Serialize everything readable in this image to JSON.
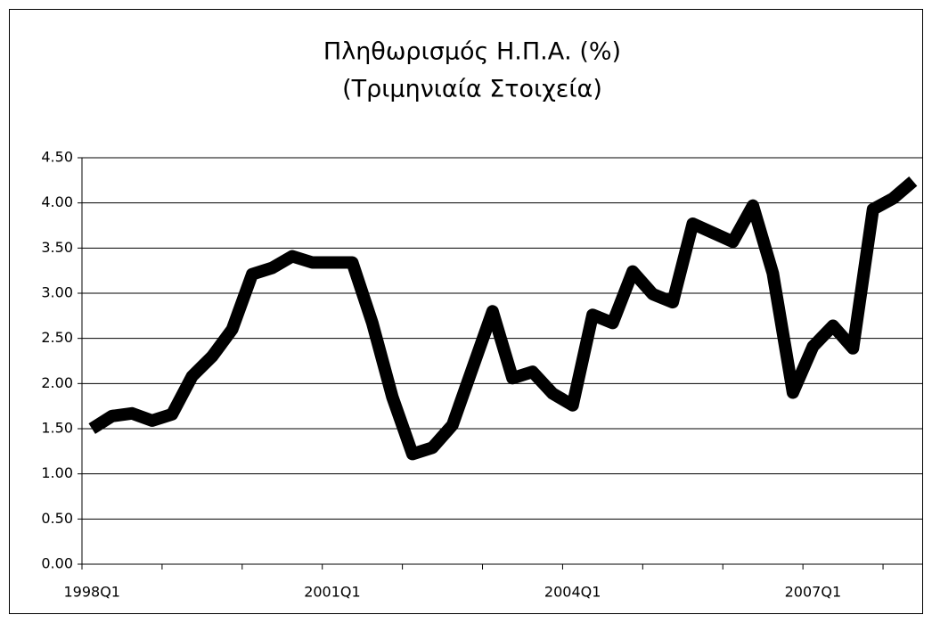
{
  "chart_data": {
    "type": "line",
    "title": [
      "Πληθωρισμός Η.Π.Α. (%)",
      "(Τριμηνιαία Στοιχεία)"
    ],
    "categories": [
      "1998Q1",
      null,
      null,
      null,
      null,
      null,
      null,
      null,
      null,
      null,
      null,
      null,
      "2001Q1",
      null,
      null,
      null,
      null,
      null,
      null,
      null,
      null,
      null,
      null,
      null,
      "2004Q1",
      null,
      null,
      null,
      null,
      null,
      null,
      null,
      null,
      null,
      null,
      null,
      "2007Q1",
      null,
      null,
      null,
      null,
      null
    ],
    "series": [
      {
        "color": "#000000",
        "values": [
          1.5,
          1.64,
          1.67,
          1.59,
          1.66,
          2.08,
          2.3,
          2.6,
          3.21,
          3.28,
          3.41,
          3.34,
          3.34,
          3.34,
          2.67,
          1.85,
          1.22,
          1.29,
          1.54,
          2.17,
          2.8,
          2.06,
          2.13,
          1.89,
          1.76,
          2.76,
          2.67,
          3.24,
          2.99,
          2.9,
          3.77,
          3.67,
          3.57,
          3.97,
          3.22,
          1.9,
          2.41,
          2.64,
          2.39,
          3.93,
          4.05,
          4.24
        ]
      }
    ],
    "ylim": [
      0,
      4.5
    ],
    "yticks": [
      {
        "value": 0,
        "label": "0.00"
      },
      {
        "value": 0.5,
        "label": "0.50"
      },
      {
        "value": 1,
        "label": "1.00"
      },
      {
        "value": 1.5,
        "label": "1.50"
      },
      {
        "value": 2,
        "label": "2.00"
      },
      {
        "value": 2.5,
        "label": "2.50"
      },
      {
        "value": 3,
        "label": "3.00"
      },
      {
        "value": 3.5,
        "label": "3.50"
      },
      {
        "value": 4,
        "label": "4.00"
      },
      {
        "value": 4.5,
        "label": "4.50"
      }
    ],
    "grid": true
  }
}
